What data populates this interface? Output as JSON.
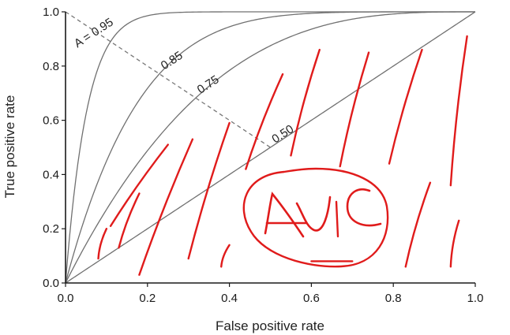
{
  "chart_data": {
    "type": "line",
    "xlabel": "False positive rate",
    "ylabel": "True positive rate",
    "xlim": [
      0,
      1
    ],
    "ylim": [
      0,
      1
    ],
    "x_ticks": [
      "0.0",
      "0.2",
      "0.4",
      "0.6",
      "0.8",
      "1.0"
    ],
    "y_ticks": [
      "0.0",
      "0.2",
      "0.4",
      "0.6",
      "0.8",
      "1.0"
    ],
    "curve_prefix": "A = ",
    "series": [
      {
        "name": "0.95",
        "auc": 0.95
      },
      {
        "name": "0.85",
        "auc": 0.85
      },
      {
        "name": "0.75",
        "auc": 0.75
      },
      {
        "name": "0.50",
        "auc": 0.5
      }
    ],
    "dashed_line": [
      [
        0,
        1
      ],
      [
        0.5,
        0.5
      ]
    ],
    "grid": false,
    "colors": {
      "curve": "#707070",
      "axis": "#1a1a1a",
      "dashed": "#777777",
      "annotation": "#e01b1b"
    }
  },
  "annotation": {
    "handwritten_text": "AUC",
    "hatch_strokes": [
      [
        [
          0.08,
          0.09
        ],
        [
          0.1,
          0.2
        ]
      ],
      [
        [
          0.13,
          0.13
        ],
        [
          0.18,
          0.33
        ]
      ],
      [
        [
          0.11,
          0.21
        ],
        [
          0.25,
          0.51
        ]
      ],
      [
        [
          0.18,
          0.03
        ],
        [
          0.31,
          0.53
        ]
      ],
      [
        [
          0.3,
          0.09
        ],
        [
          0.4,
          0.59
        ]
      ],
      [
        [
          0.38,
          0.06
        ],
        [
          0.4,
          0.14
        ]
      ],
      [
        [
          0.44,
          0.42
        ],
        [
          0.53,
          0.77
        ]
      ],
      [
        [
          0.55,
          0.47
        ],
        [
          0.62,
          0.86
        ]
      ],
      [
        [
          0.67,
          0.43
        ],
        [
          0.74,
          0.85
        ]
      ],
      [
        [
          0.79,
          0.44
        ],
        [
          0.87,
          0.86
        ]
      ],
      [
        [
          0.94,
          0.36
        ],
        [
          0.98,
          0.91
        ]
      ],
      [
        [
          0.83,
          0.06
        ],
        [
          0.89,
          0.37
        ]
      ],
      [
        [
          0.94,
          0.06
        ],
        [
          0.96,
          0.23
        ]
      ],
      [
        [
          0.6,
          0.08
        ],
        [
          0.7,
          0.08
        ]
      ]
    ]
  }
}
